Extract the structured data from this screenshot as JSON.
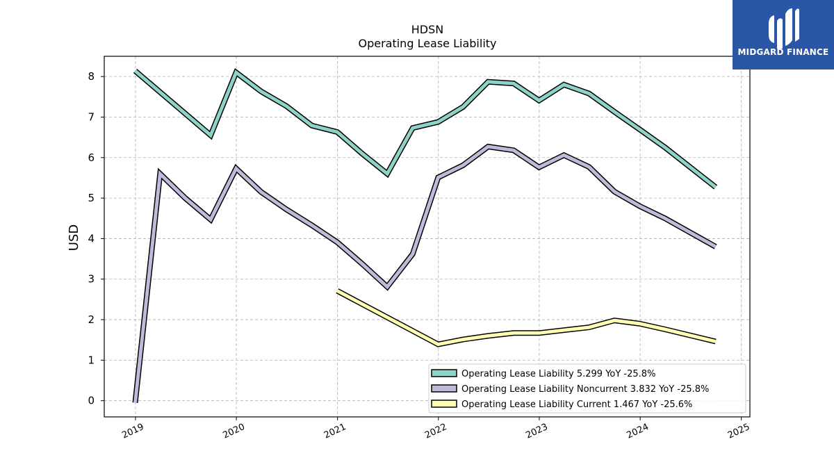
{
  "brand": {
    "name": "MIDGARD FINANCE",
    "color": "#2a56a8"
  },
  "chart_data": {
    "type": "line",
    "title": "HDSN",
    "subtitle": "Operating Lease Liability",
    "xlabel": "",
    "ylabel": "USD",
    "x_ticks": [
      "2019",
      "2020",
      "2021",
      "2022",
      "2023",
      "2024",
      "2025"
    ],
    "y_ticks": [
      0,
      1,
      2,
      3,
      4,
      5,
      6,
      7,
      8
    ],
    "xlim": [
      "2018-09-10",
      "2025-02-01"
    ],
    "ylim": [
      -0.4,
      8.5
    ],
    "grid": true,
    "legend_position": "lower-right",
    "series": [
      {
        "name": "Operating Lease Liability",
        "legend_label": "Operating Lease Liability  5.299 YoY -25.8%",
        "color": "#8dd3c7",
        "points": [
          [
            "2018-12-31",
            8.14
          ],
          [
            "2019-09-30",
            6.55
          ],
          [
            "2019-12-31",
            8.1
          ],
          [
            "2020-03-31",
            7.63
          ],
          [
            "2020-06-30",
            7.27
          ],
          [
            "2020-09-30",
            6.79
          ],
          [
            "2020-12-31",
            6.63
          ],
          [
            "2021-03-31",
            6.1
          ],
          [
            "2021-06-30",
            5.6
          ],
          [
            "2021-09-30",
            6.73
          ],
          [
            "2021-12-31",
            6.88
          ],
          [
            "2022-03-31",
            7.25
          ],
          [
            "2022-06-30",
            7.87
          ],
          [
            "2022-09-30",
            7.83
          ],
          [
            "2022-12-31",
            7.41
          ],
          [
            "2023-03-31",
            7.8
          ],
          [
            "2023-06-30",
            7.58
          ],
          [
            "2023-09-30",
            7.13
          ],
          [
            "2023-12-31",
            6.69
          ],
          [
            "2024-03-31",
            6.25
          ],
          [
            "2024-09-30",
            5.27
          ]
        ]
      },
      {
        "name": "Operating Lease Liability Noncurrent",
        "legend_label": "Operating Lease Liability Noncurrent  3.832 YoY -25.8%",
        "color": "#bebada",
        "points": [
          [
            "2018-12-31",
            -0.05
          ],
          [
            "2019-03-31",
            5.6
          ],
          [
            "2019-06-30",
            5.0
          ],
          [
            "2019-09-30",
            4.47
          ],
          [
            "2019-12-31",
            5.73
          ],
          [
            "2020-03-31",
            5.15
          ],
          [
            "2020-06-30",
            4.72
          ],
          [
            "2020-09-30",
            4.33
          ],
          [
            "2020-12-31",
            3.91
          ],
          [
            "2021-03-31",
            3.38
          ],
          [
            "2021-06-30",
            2.81
          ],
          [
            "2021-09-30",
            3.62
          ],
          [
            "2021-12-31",
            5.51
          ],
          [
            "2022-03-31",
            5.81
          ],
          [
            "2022-06-30",
            6.27
          ],
          [
            "2022-09-30",
            6.18
          ],
          [
            "2022-12-31",
            5.76
          ],
          [
            "2023-03-31",
            6.06
          ],
          [
            "2023-06-30",
            5.77
          ],
          [
            "2023-09-30",
            5.16
          ],
          [
            "2023-12-31",
            4.8
          ],
          [
            "2024-03-31",
            4.5
          ],
          [
            "2024-09-30",
            3.8
          ]
        ]
      },
      {
        "name": "Operating Lease Liability Current",
        "legend_label": "Operating Lease Liability Current  1.467 YoY -25.6%",
        "color": "#ffffb3",
        "points": [
          [
            "2020-12-31",
            2.71
          ],
          [
            "2021-12-31",
            1.39
          ],
          [
            "2022-03-31",
            1.51
          ],
          [
            "2022-06-30",
            1.6
          ],
          [
            "2022-09-30",
            1.67
          ],
          [
            "2022-12-31",
            1.67
          ],
          [
            "2023-03-31",
            1.74
          ],
          [
            "2023-06-30",
            1.81
          ],
          [
            "2023-09-30",
            1.98
          ],
          [
            "2023-12-31",
            1.9
          ],
          [
            "2024-03-31",
            1.76
          ],
          [
            "2024-09-30",
            1.46
          ]
        ]
      }
    ]
  }
}
